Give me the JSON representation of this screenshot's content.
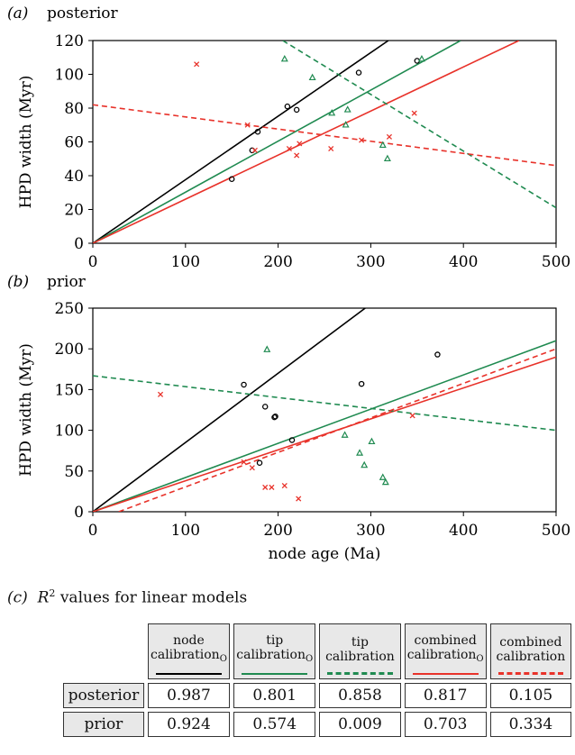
{
  "colors": {
    "node_calibration": "#000000",
    "tip_calibration": "#1f8a50",
    "combined_calibration": "#e8322a"
  },
  "chart_data": [
    {
      "type": "scatter",
      "panel_label": "(a)",
      "title": "posterior",
      "xlabel": "",
      "ylabel": "HPD width (Myr)",
      "xlim": [
        0,
        500
      ],
      "ylim": [
        0,
        120
      ],
      "xticks": [
        0,
        100,
        200,
        300,
        400,
        500
      ],
      "yticks": [
        0,
        20,
        40,
        60,
        80,
        100,
        120
      ],
      "points": [
        {
          "marker": "circle",
          "color": "#000000",
          "data": [
            [
              150,
              38
            ],
            [
              172,
              55
            ],
            [
              178,
              66
            ],
            [
              210,
              81
            ],
            [
              220,
              79
            ],
            [
              287,
              101
            ],
            [
              350,
              108
            ]
          ]
        },
        {
          "marker": "triangle",
          "color": "#1f8a50",
          "data": [
            [
              207,
              109
            ],
            [
              237,
              98
            ],
            [
              258,
              77
            ],
            [
              273,
              70
            ],
            [
              275,
              79
            ],
            [
              313,
              58
            ],
            [
              318,
              50
            ],
            [
              355,
              109
            ]
          ]
        },
        {
          "marker": "cross",
          "color": "#e8322a",
          "data": [
            [
              112,
              106
            ],
            [
              167,
              70
            ],
            [
              175,
              55
            ],
            [
              212,
              56
            ],
            [
              220,
              52
            ],
            [
              223,
              59
            ],
            [
              257,
              56
            ],
            [
              290,
              61
            ],
            [
              320,
              63
            ],
            [
              347,
              77
            ]
          ]
        }
      ],
      "lines": [
        {
          "color": "#000000",
          "style": "solid",
          "x": [
            0,
            319
          ],
          "y": [
            0,
            120
          ]
        },
        {
          "color": "#1f8a50",
          "style": "solid",
          "x": [
            0,
            397
          ],
          "y": [
            0,
            120
          ]
        },
        {
          "color": "#e8322a",
          "style": "solid",
          "x": [
            0,
            460
          ],
          "y": [
            0,
            120
          ]
        },
        {
          "color": "#1f8a50",
          "style": "dashed",
          "x": [
            205,
            500
          ],
          "y": [
            120,
            21
          ]
        },
        {
          "color": "#e8322a",
          "style": "dashed",
          "x": [
            0,
            500
          ],
          "y": [
            82,
            46
          ]
        }
      ]
    },
    {
      "type": "scatter",
      "panel_label": "(b)",
      "title": "prior",
      "xlabel": "node age (Ma)",
      "ylabel": "HPD width (Myr)",
      "xlim": [
        0,
        500
      ],
      "ylim": [
        0,
        250
      ],
      "xticks": [
        0,
        100,
        200,
        300,
        400,
        500
      ],
      "yticks": [
        0,
        50,
        100,
        150,
        200,
        250
      ],
      "points": [
        {
          "marker": "circle",
          "color": "#000000",
          "data": [
            [
              163,
              156
            ],
            [
              180,
              60
            ],
            [
              186,
              129
            ],
            [
              196,
              116
            ],
            [
              197,
              117
            ],
            [
              215,
              88
            ],
            [
              290,
              157
            ],
            [
              372,
              193
            ]
          ]
        },
        {
          "marker": "triangle",
          "color": "#1f8a50",
          "data": [
            [
              188,
              199
            ],
            [
              272,
              94
            ],
            [
              288,
              72
            ],
            [
              293,
              57
            ],
            [
              301,
              86
            ],
            [
              313,
              42
            ],
            [
              316,
              36
            ]
          ]
        },
        {
          "marker": "cross",
          "color": "#e8322a",
          "data": [
            [
              73,
              144
            ],
            [
              163,
              61
            ],
            [
              172,
              54
            ],
            [
              186,
              30
            ],
            [
              193,
              30
            ],
            [
              207,
              32
            ],
            [
              222,
              16
            ],
            [
              345,
              118
            ]
          ]
        }
      ],
      "lines": [
        {
          "color": "#000000",
          "style": "solid",
          "x": [
            0,
            294
          ],
          "y": [
            0,
            250
          ]
        },
        {
          "color": "#1f8a50",
          "style": "solid",
          "x": [
            0,
            500
          ],
          "y": [
            0,
            210
          ]
        },
        {
          "color": "#e8322a",
          "style": "solid",
          "x": [
            0,
            500
          ],
          "y": [
            0,
            190
          ]
        },
        {
          "color": "#1f8a50",
          "style": "dashed",
          "x": [
            0,
            500
          ],
          "y": [
            167,
            100
          ]
        },
        {
          "color": "#e8322a",
          "style": "dashed",
          "x": [
            28,
            500
          ],
          "y": [
            0,
            200
          ]
        }
      ]
    },
    {
      "type": "table",
      "panel_label": "(c)",
      "title_symbol": "R",
      "title_superscript": "2",
      "title": "values for linear models",
      "columns": [
        {
          "label": "node calibration",
          "subscript": "O",
          "color": "#000000",
          "style": "solid"
        },
        {
          "label": "tip calibration",
          "subscript": "O",
          "color": "#1f8a50",
          "style": "solid"
        },
        {
          "label": "tip calibration",
          "subscript": "",
          "color": "#1f8a50",
          "style": "dashed"
        },
        {
          "label": "combined calibration",
          "subscript": "O",
          "color": "#e8322a",
          "style": "solid"
        },
        {
          "label": "combined calibration",
          "subscript": "",
          "color": "#e8322a",
          "style": "dashed"
        }
      ],
      "rows": [
        {
          "label": "posterior",
          "values": [
            "0.987",
            "0.801",
            "0.858",
            "0.817",
            "0.105"
          ]
        },
        {
          "label": "prior",
          "values": [
            "0.924",
            "0.574",
            "0.009",
            "0.703",
            "0.334"
          ]
        }
      ]
    }
  ]
}
